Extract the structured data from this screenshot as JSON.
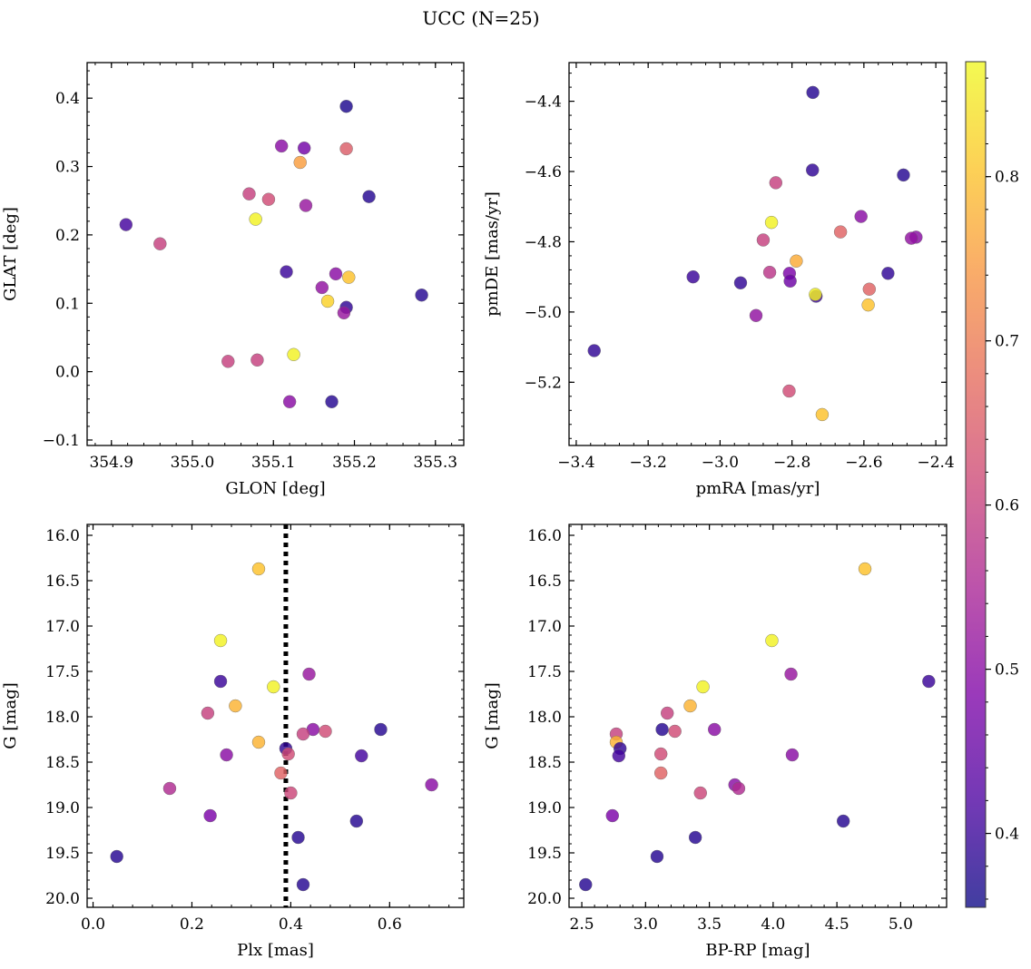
{
  "figure": {
    "title": "UCC (N=25)"
  },
  "colorbar": {
    "range": [
      0.355,
      0.87
    ],
    "ticks": [
      0.4,
      0.5,
      0.6,
      0.7,
      0.8
    ],
    "tick_labels": [
      "0.4",
      "0.5",
      "0.6",
      "0.7",
      "0.8"
    ],
    "colormap": "plasma"
  },
  "chart_data": [
    {
      "type": "scatter",
      "xlabel": "GLON [deg]",
      "ylabel": "GLAT [deg]",
      "xlim": [
        354.87,
        355.335
      ],
      "ylim": [
        -0.108,
        0.452
      ],
      "xticks": [
        354.9,
        355.0,
        355.1,
        355.2,
        355.3
      ],
      "xtick_labels": [
        "354.9",
        "355.0",
        "355.1",
        "355.2",
        "355.3"
      ],
      "yticks": [
        -0.1,
        0.0,
        0.1,
        0.2,
        0.3,
        0.4
      ],
      "ytick_labels": [
        "−0.1",
        "0.0",
        "0.1",
        "0.2",
        "0.3",
        "0.4"
      ],
      "y_inverted": false,
      "points": [
        {
          "x": 355.19,
          "y": 0.388,
          "c": 0.37
        },
        {
          "x": 355.11,
          "y": 0.33,
          "c": 0.5
        },
        {
          "x": 355.138,
          "y": 0.327,
          "c": 0.47
        },
        {
          "x": 355.19,
          "y": 0.326,
          "c": 0.65
        },
        {
          "x": 355.133,
          "y": 0.306,
          "c": 0.75
        },
        {
          "x": 355.07,
          "y": 0.26,
          "c": 0.6
        },
        {
          "x": 355.094,
          "y": 0.252,
          "c": 0.62
        },
        {
          "x": 355.218,
          "y": 0.256,
          "c": 0.38
        },
        {
          "x": 355.14,
          "y": 0.243,
          "c": 0.52
        },
        {
          "x": 355.078,
          "y": 0.223,
          "c": 0.86
        },
        {
          "x": 354.918,
          "y": 0.215,
          "c": 0.41
        },
        {
          "x": 354.96,
          "y": 0.187,
          "c": 0.6
        },
        {
          "x": 355.116,
          "y": 0.146,
          "c": 0.4
        },
        {
          "x": 355.177,
          "y": 0.143,
          "c": 0.5
        },
        {
          "x": 355.193,
          "y": 0.138,
          "c": 0.8
        },
        {
          "x": 355.16,
          "y": 0.123,
          "c": 0.51
        },
        {
          "x": 355.283,
          "y": 0.112,
          "c": 0.38
        },
        {
          "x": 355.167,
          "y": 0.103,
          "c": 0.82
        },
        {
          "x": 355.19,
          "y": 0.094,
          "c": 0.39
        },
        {
          "x": 355.187,
          "y": 0.086,
          "c": 0.52
        },
        {
          "x": 355.125,
          "y": 0.025,
          "c": 0.86
        },
        {
          "x": 355.044,
          "y": 0.015,
          "c": 0.6
        },
        {
          "x": 355.08,
          "y": 0.017,
          "c": 0.6
        },
        {
          "x": 355.12,
          "y": -0.044,
          "c": 0.5
        },
        {
          "x": 355.172,
          "y": -0.044,
          "c": 0.38
        }
      ]
    },
    {
      "type": "scatter",
      "xlabel": "pmRA [mas/yr]",
      "ylabel": "pmDE [mas/yr]",
      "xlim": [
        -3.42,
        -2.37
      ],
      "ylim": [
        -5.38,
        -4.29
      ],
      "xticks": [
        -3.4,
        -3.2,
        -3.0,
        -2.8,
        -2.6,
        -2.4
      ],
      "xtick_labels": [
        "−3.4",
        "−3.2",
        "−3.0",
        "−2.8",
        "−2.6",
        "−2.4"
      ],
      "yticks": [
        -5.2,
        -5.0,
        -4.8,
        -4.6,
        -4.4
      ],
      "ytick_labels": [
        "−5.2",
        "−5.0",
        "−4.8",
        "−4.6",
        "−4.4"
      ],
      "y_inverted": false,
      "points": [
        {
          "x": -2.742,
          "y": -4.375,
          "c": 0.38
        },
        {
          "x": -2.743,
          "y": -4.596,
          "c": 0.39
        },
        {
          "x": -2.49,
          "y": -4.61,
          "c": 0.38
        },
        {
          "x": -2.845,
          "y": -4.632,
          "c": 0.6
        },
        {
          "x": -2.608,
          "y": -4.728,
          "c": 0.5
        },
        {
          "x": -2.857,
          "y": -4.745,
          "c": 0.86
        },
        {
          "x": -2.665,
          "y": -4.772,
          "c": 0.66
        },
        {
          "x": -2.455,
          "y": -4.787,
          "c": 0.5
        },
        {
          "x": -2.468,
          "y": -4.79,
          "c": 0.51
        },
        {
          "x": -2.88,
          "y": -4.795,
          "c": 0.6
        },
        {
          "x": -2.788,
          "y": -4.855,
          "c": 0.77
        },
        {
          "x": -2.862,
          "y": -4.887,
          "c": 0.58
        },
        {
          "x": -2.807,
          "y": -4.89,
          "c": 0.48
        },
        {
          "x": -2.533,
          "y": -4.89,
          "c": 0.39
        },
        {
          "x": -3.075,
          "y": -4.9,
          "c": 0.4
        },
        {
          "x": -2.805,
          "y": -4.912,
          "c": 0.46
        },
        {
          "x": -2.943,
          "y": -4.917,
          "c": 0.39
        },
        {
          "x": -2.585,
          "y": -4.935,
          "c": 0.66
        },
        {
          "x": -2.733,
          "y": -4.955,
          "c": 0.4
        },
        {
          "x": -2.735,
          "y": -4.95,
          "c": 0.86
        },
        {
          "x": -2.588,
          "y": -4.98,
          "c": 0.8
        },
        {
          "x": -2.9,
          "y": -5.01,
          "c": 0.51
        },
        {
          "x": -3.35,
          "y": -5.11,
          "c": 0.39
        },
        {
          "x": -2.808,
          "y": -5.225,
          "c": 0.62
        },
        {
          "x": -2.716,
          "y": -5.292,
          "c": 0.8
        }
      ]
    },
    {
      "type": "scatter",
      "xlabel": "Plx [mas]",
      "ylabel": "G [mag]",
      "xlim": [
        -0.012,
        0.75
      ],
      "ylim": [
        20.1,
        15.88
      ],
      "xticks": [
        0.0,
        0.2,
        0.4,
        0.6
      ],
      "xtick_labels": [
        "0.0",
        "0.2",
        "0.4",
        "0.6"
      ],
      "yticks": [
        16.0,
        16.5,
        17.0,
        17.5,
        18.0,
        18.5,
        19.0,
        19.5,
        20.0
      ],
      "ytick_labels": [
        "16.0",
        "16.5",
        "17.0",
        "17.5",
        "18.0",
        "18.5",
        "19.0",
        "19.5",
        "20.0"
      ],
      "y_inverted": true,
      "vline": 0.39,
      "points": [
        {
          "x": 0.335,
          "y": 16.37,
          "c": 0.8
        },
        {
          "x": 0.258,
          "y": 17.16,
          "c": 0.86
        },
        {
          "x": 0.258,
          "y": 17.61,
          "c": 0.4
        },
        {
          "x": 0.365,
          "y": 17.67,
          "c": 0.86
        },
        {
          "x": 0.437,
          "y": 17.53,
          "c": 0.52
        },
        {
          "x": 0.288,
          "y": 17.88,
          "c": 0.78
        },
        {
          "x": 0.232,
          "y": 17.96,
          "c": 0.6
        },
        {
          "x": 0.582,
          "y": 18.14,
          "c": 0.38
        },
        {
          "x": 0.445,
          "y": 18.14,
          "c": 0.5
        },
        {
          "x": 0.47,
          "y": 18.16,
          "c": 0.62
        },
        {
          "x": 0.425,
          "y": 18.19,
          "c": 0.6
        },
        {
          "x": 0.335,
          "y": 18.28,
          "c": 0.78
        },
        {
          "x": 0.39,
          "y": 18.35,
          "c": 0.39
        },
        {
          "x": 0.395,
          "y": 18.41,
          "c": 0.62
        },
        {
          "x": 0.27,
          "y": 18.42,
          "c": 0.5
        },
        {
          "x": 0.543,
          "y": 18.43,
          "c": 0.41
        },
        {
          "x": 0.38,
          "y": 18.62,
          "c": 0.66
        },
        {
          "x": 0.685,
          "y": 18.75,
          "c": 0.5
        },
        {
          "x": 0.155,
          "y": 18.79,
          "c": 0.56
        },
        {
          "x": 0.4,
          "y": 18.84,
          "c": 0.61
        },
        {
          "x": 0.237,
          "y": 19.09,
          "c": 0.48
        },
        {
          "x": 0.533,
          "y": 19.15,
          "c": 0.38
        },
        {
          "x": 0.415,
          "y": 19.33,
          "c": 0.38
        },
        {
          "x": 0.048,
          "y": 19.54,
          "c": 0.38
        },
        {
          "x": 0.425,
          "y": 19.85,
          "c": 0.38
        }
      ]
    },
    {
      "type": "scatter",
      "xlabel": "BP-RP [mag]",
      "ylabel": "G [mag]",
      "xlim": [
        2.4,
        5.36
      ],
      "ylim": [
        20.1,
        15.88
      ],
      "xticks": [
        2.5,
        3.0,
        3.5,
        4.0,
        4.5,
        5.0
      ],
      "xtick_labels": [
        "2.5",
        "3.0",
        "3.5",
        "4.0",
        "4.5",
        "5.0"
      ],
      "yticks": [
        16.0,
        16.5,
        17.0,
        17.5,
        18.0,
        18.5,
        19.0,
        19.5,
        20.0
      ],
      "ytick_labels": [
        "16.0",
        "16.5",
        "17.0",
        "17.5",
        "18.0",
        "18.5",
        "19.0",
        "19.5",
        "20.0"
      ],
      "y_inverted": true,
      "points": [
        {
          "x": 4.72,
          "y": 16.37,
          "c": 0.8
        },
        {
          "x": 3.99,
          "y": 17.16,
          "c": 0.86
        },
        {
          "x": 5.22,
          "y": 17.61,
          "c": 0.4
        },
        {
          "x": 3.45,
          "y": 17.67,
          "c": 0.86
        },
        {
          "x": 4.14,
          "y": 17.53,
          "c": 0.52
        },
        {
          "x": 3.35,
          "y": 17.88,
          "c": 0.78
        },
        {
          "x": 3.17,
          "y": 17.96,
          "c": 0.6
        },
        {
          "x": 3.13,
          "y": 18.14,
          "c": 0.38
        },
        {
          "x": 3.54,
          "y": 18.14,
          "c": 0.5
        },
        {
          "x": 3.23,
          "y": 18.16,
          "c": 0.62
        },
        {
          "x": 2.77,
          "y": 18.19,
          "c": 0.6
        },
        {
          "x": 2.77,
          "y": 18.28,
          "c": 0.78
        },
        {
          "x": 2.8,
          "y": 18.35,
          "c": 0.39
        },
        {
          "x": 3.12,
          "y": 18.41,
          "c": 0.62
        },
        {
          "x": 4.15,
          "y": 18.42,
          "c": 0.5
        },
        {
          "x": 2.79,
          "y": 18.43,
          "c": 0.41
        },
        {
          "x": 3.12,
          "y": 18.62,
          "c": 0.66
        },
        {
          "x": 3.7,
          "y": 18.75,
          "c": 0.5
        },
        {
          "x": 3.73,
          "y": 18.79,
          "c": 0.56
        },
        {
          "x": 3.43,
          "y": 18.84,
          "c": 0.61
        },
        {
          "x": 2.74,
          "y": 19.09,
          "c": 0.48
        },
        {
          "x": 4.55,
          "y": 19.15,
          "c": 0.38
        },
        {
          "x": 3.39,
          "y": 19.33,
          "c": 0.38
        },
        {
          "x": 3.09,
          "y": 19.54,
          "c": 0.38
        },
        {
          "x": 2.53,
          "y": 19.85,
          "c": 0.38
        }
      ]
    }
  ]
}
